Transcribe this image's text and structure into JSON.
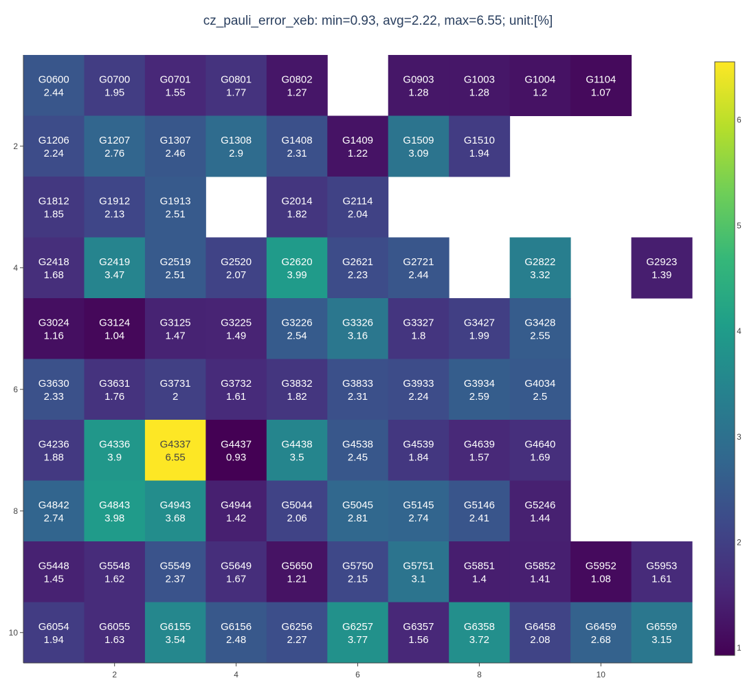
{
  "chart_data": {
    "type": "heatmap",
    "title": "cz_pauli_error_xeb: min=0.93,  avg=2.22,  max=6.55; unit:[%]",
    "xlabel": "",
    "ylabel": "",
    "x_range": [
      0.5,
      11.5
    ],
    "y_range": [
      0.5,
      10.5
    ],
    "y_reversed": true,
    "x_ticks": [
      2,
      4,
      6,
      8,
      10
    ],
    "y_ticks": [
      2,
      4,
      6,
      8,
      10
    ],
    "colorscale": "viridis",
    "color_range": [
      0.93,
      6.55
    ],
    "colorbar_ticks": [
      1,
      2,
      3,
      4,
      5,
      6
    ],
    "grid": false,
    "cells": [
      {
        "x": 1,
        "y": 1,
        "label": "G0600",
        "value": 2.44
      },
      {
        "x": 2,
        "y": 1,
        "label": "G0700",
        "value": 1.95
      },
      {
        "x": 3,
        "y": 1,
        "label": "G0701",
        "value": 1.55
      },
      {
        "x": 4,
        "y": 1,
        "label": "G0801",
        "value": 1.77
      },
      {
        "x": 5,
        "y": 1,
        "label": "G0802",
        "value": 1.27
      },
      {
        "x": 7,
        "y": 1,
        "label": "G0903",
        "value": 1.28
      },
      {
        "x": 8,
        "y": 1,
        "label": "G1003",
        "value": 1.28
      },
      {
        "x": 9,
        "y": 1,
        "label": "G1004",
        "value": 1.2
      },
      {
        "x": 10,
        "y": 1,
        "label": "G1104",
        "value": 1.07
      },
      {
        "x": 1,
        "y": 2,
        "label": "G1206",
        "value": 2.24
      },
      {
        "x": 2,
        "y": 2,
        "label": "G1207",
        "value": 2.76
      },
      {
        "x": 3,
        "y": 2,
        "label": "G1307",
        "value": 2.46
      },
      {
        "x": 4,
        "y": 2,
        "label": "G1308",
        "value": 2.9
      },
      {
        "x": 5,
        "y": 2,
        "label": "G1408",
        "value": 2.31
      },
      {
        "x": 6,
        "y": 2,
        "label": "G1409",
        "value": 1.22
      },
      {
        "x": 7,
        "y": 2,
        "label": "G1509",
        "value": 3.09
      },
      {
        "x": 8,
        "y": 2,
        "label": "G1510",
        "value": 1.94
      },
      {
        "x": 1,
        "y": 3,
        "label": "G1812",
        "value": 1.85
      },
      {
        "x": 2,
        "y": 3,
        "label": "G1912",
        "value": 2.13
      },
      {
        "x": 3,
        "y": 3,
        "label": "G1913",
        "value": 2.51
      },
      {
        "x": 5,
        "y": 3,
        "label": "G2014",
        "value": 1.82
      },
      {
        "x": 6,
        "y": 3,
        "label": "G2114",
        "value": 2.04
      },
      {
        "x": 1,
        "y": 4,
        "label": "G2418",
        "value": 1.68
      },
      {
        "x": 2,
        "y": 4,
        "label": "G2419",
        "value": 3.47
      },
      {
        "x": 3,
        "y": 4,
        "label": "G2519",
        "value": 2.51
      },
      {
        "x": 4,
        "y": 4,
        "label": "G2520",
        "value": 2.07
      },
      {
        "x": 5,
        "y": 4,
        "label": "G2620",
        "value": 3.99
      },
      {
        "x": 6,
        "y": 4,
        "label": "G2621",
        "value": 2.23
      },
      {
        "x": 7,
        "y": 4,
        "label": "G2721",
        "value": 2.44
      },
      {
        "x": 9,
        "y": 4,
        "label": "G2822",
        "value": 3.32
      },
      {
        "x": 11,
        "y": 4,
        "label": "G2923",
        "value": 1.39
      },
      {
        "x": 1,
        "y": 5,
        "label": "G3024",
        "value": 1.16
      },
      {
        "x": 2,
        "y": 5,
        "label": "G3124",
        "value": 1.04
      },
      {
        "x": 3,
        "y": 5,
        "label": "G3125",
        "value": 1.47
      },
      {
        "x": 4,
        "y": 5,
        "label": "G3225",
        "value": 1.49
      },
      {
        "x": 5,
        "y": 5,
        "label": "G3226",
        "value": 2.54
      },
      {
        "x": 6,
        "y": 5,
        "label": "G3326",
        "value": 3.16
      },
      {
        "x": 7,
        "y": 5,
        "label": "G3327",
        "value": 1.8
      },
      {
        "x": 8,
        "y": 5,
        "label": "G3427",
        "value": 1.99
      },
      {
        "x": 9,
        "y": 5,
        "label": "G3428",
        "value": 2.55
      },
      {
        "x": 1,
        "y": 6,
        "label": "G3630",
        "value": 2.33
      },
      {
        "x": 2,
        "y": 6,
        "label": "G3631",
        "value": 1.76
      },
      {
        "x": 3,
        "y": 6,
        "label": "G3731",
        "value": 2
      },
      {
        "x": 4,
        "y": 6,
        "label": "G3732",
        "value": 1.61
      },
      {
        "x": 5,
        "y": 6,
        "label": "G3832",
        "value": 1.82
      },
      {
        "x": 6,
        "y": 6,
        "label": "G3833",
        "value": 2.31
      },
      {
        "x": 7,
        "y": 6,
        "label": "G3933",
        "value": 2.24
      },
      {
        "x": 8,
        "y": 6,
        "label": "G3934",
        "value": 2.59
      },
      {
        "x": 9,
        "y": 6,
        "label": "G4034",
        "value": 2.5
      },
      {
        "x": 1,
        "y": 7,
        "label": "G4236",
        "value": 1.88
      },
      {
        "x": 2,
        "y": 7,
        "label": "G4336",
        "value": 3.9
      },
      {
        "x": 3,
        "y": 7,
        "label": "G4337",
        "value": 6.55
      },
      {
        "x": 4,
        "y": 7,
        "label": "G4437",
        "value": 0.93
      },
      {
        "x": 5,
        "y": 7,
        "label": "G4438",
        "value": 3.5
      },
      {
        "x": 6,
        "y": 7,
        "label": "G4538",
        "value": 2.45
      },
      {
        "x": 7,
        "y": 7,
        "label": "G4539",
        "value": 1.84
      },
      {
        "x": 8,
        "y": 7,
        "label": "G4639",
        "value": 1.57
      },
      {
        "x": 9,
        "y": 7,
        "label": "G4640",
        "value": 1.69
      },
      {
        "x": 1,
        "y": 8,
        "label": "G4842",
        "value": 2.74
      },
      {
        "x": 2,
        "y": 8,
        "label": "G4843",
        "value": 3.98
      },
      {
        "x": 3,
        "y": 8,
        "label": "G4943",
        "value": 3.68
      },
      {
        "x": 4,
        "y": 8,
        "label": "G4944",
        "value": 1.42
      },
      {
        "x": 5,
        "y": 8,
        "label": "G5044",
        "value": 2.06
      },
      {
        "x": 6,
        "y": 8,
        "label": "G5045",
        "value": 2.81
      },
      {
        "x": 7,
        "y": 8,
        "label": "G5145",
        "value": 2.74
      },
      {
        "x": 8,
        "y": 8,
        "label": "G5146",
        "value": 2.41
      },
      {
        "x": 9,
        "y": 8,
        "label": "G5246",
        "value": 1.44
      },
      {
        "x": 1,
        "y": 9,
        "label": "G5448",
        "value": 1.45
      },
      {
        "x": 2,
        "y": 9,
        "label": "G5548",
        "value": 1.62
      },
      {
        "x": 3,
        "y": 9,
        "label": "G5549",
        "value": 2.37
      },
      {
        "x": 4,
        "y": 9,
        "label": "G5649",
        "value": 1.67
      },
      {
        "x": 5,
        "y": 9,
        "label": "G5650",
        "value": 1.21
      },
      {
        "x": 6,
        "y": 9,
        "label": "G5750",
        "value": 2.15
      },
      {
        "x": 7,
        "y": 9,
        "label": "G5751",
        "value": 3.1
      },
      {
        "x": 8,
        "y": 9,
        "label": "G5851",
        "value": 1.4
      },
      {
        "x": 9,
        "y": 9,
        "label": "G5852",
        "value": 1.41
      },
      {
        "x": 10,
        "y": 9,
        "label": "G5952",
        "value": 1.08
      },
      {
        "x": 11,
        "y": 9,
        "label": "G5953",
        "value": 1.61
      },
      {
        "x": 1,
        "y": 10,
        "label": "G6054",
        "value": 1.94
      },
      {
        "x": 2,
        "y": 10,
        "label": "G6055",
        "value": 1.63
      },
      {
        "x": 3,
        "y": 10,
        "label": "G6155",
        "value": 3.54
      },
      {
        "x": 4,
        "y": 10,
        "label": "G6156",
        "value": 2.48
      },
      {
        "x": 5,
        "y": 10,
        "label": "G6256",
        "value": 2.27
      },
      {
        "x": 6,
        "y": 10,
        "label": "G6257",
        "value": 3.77
      },
      {
        "x": 7,
        "y": 10,
        "label": "G6357",
        "value": 1.56
      },
      {
        "x": 8,
        "y": 10,
        "label": "G6358",
        "value": 3.72
      },
      {
        "x": 9,
        "y": 10,
        "label": "G6458",
        "value": 2.08
      },
      {
        "x": 10,
        "y": 10,
        "label": "G6459",
        "value": 2.68
      },
      {
        "x": 11,
        "y": 10,
        "label": "G6559",
        "value": 3.15
      }
    ]
  }
}
